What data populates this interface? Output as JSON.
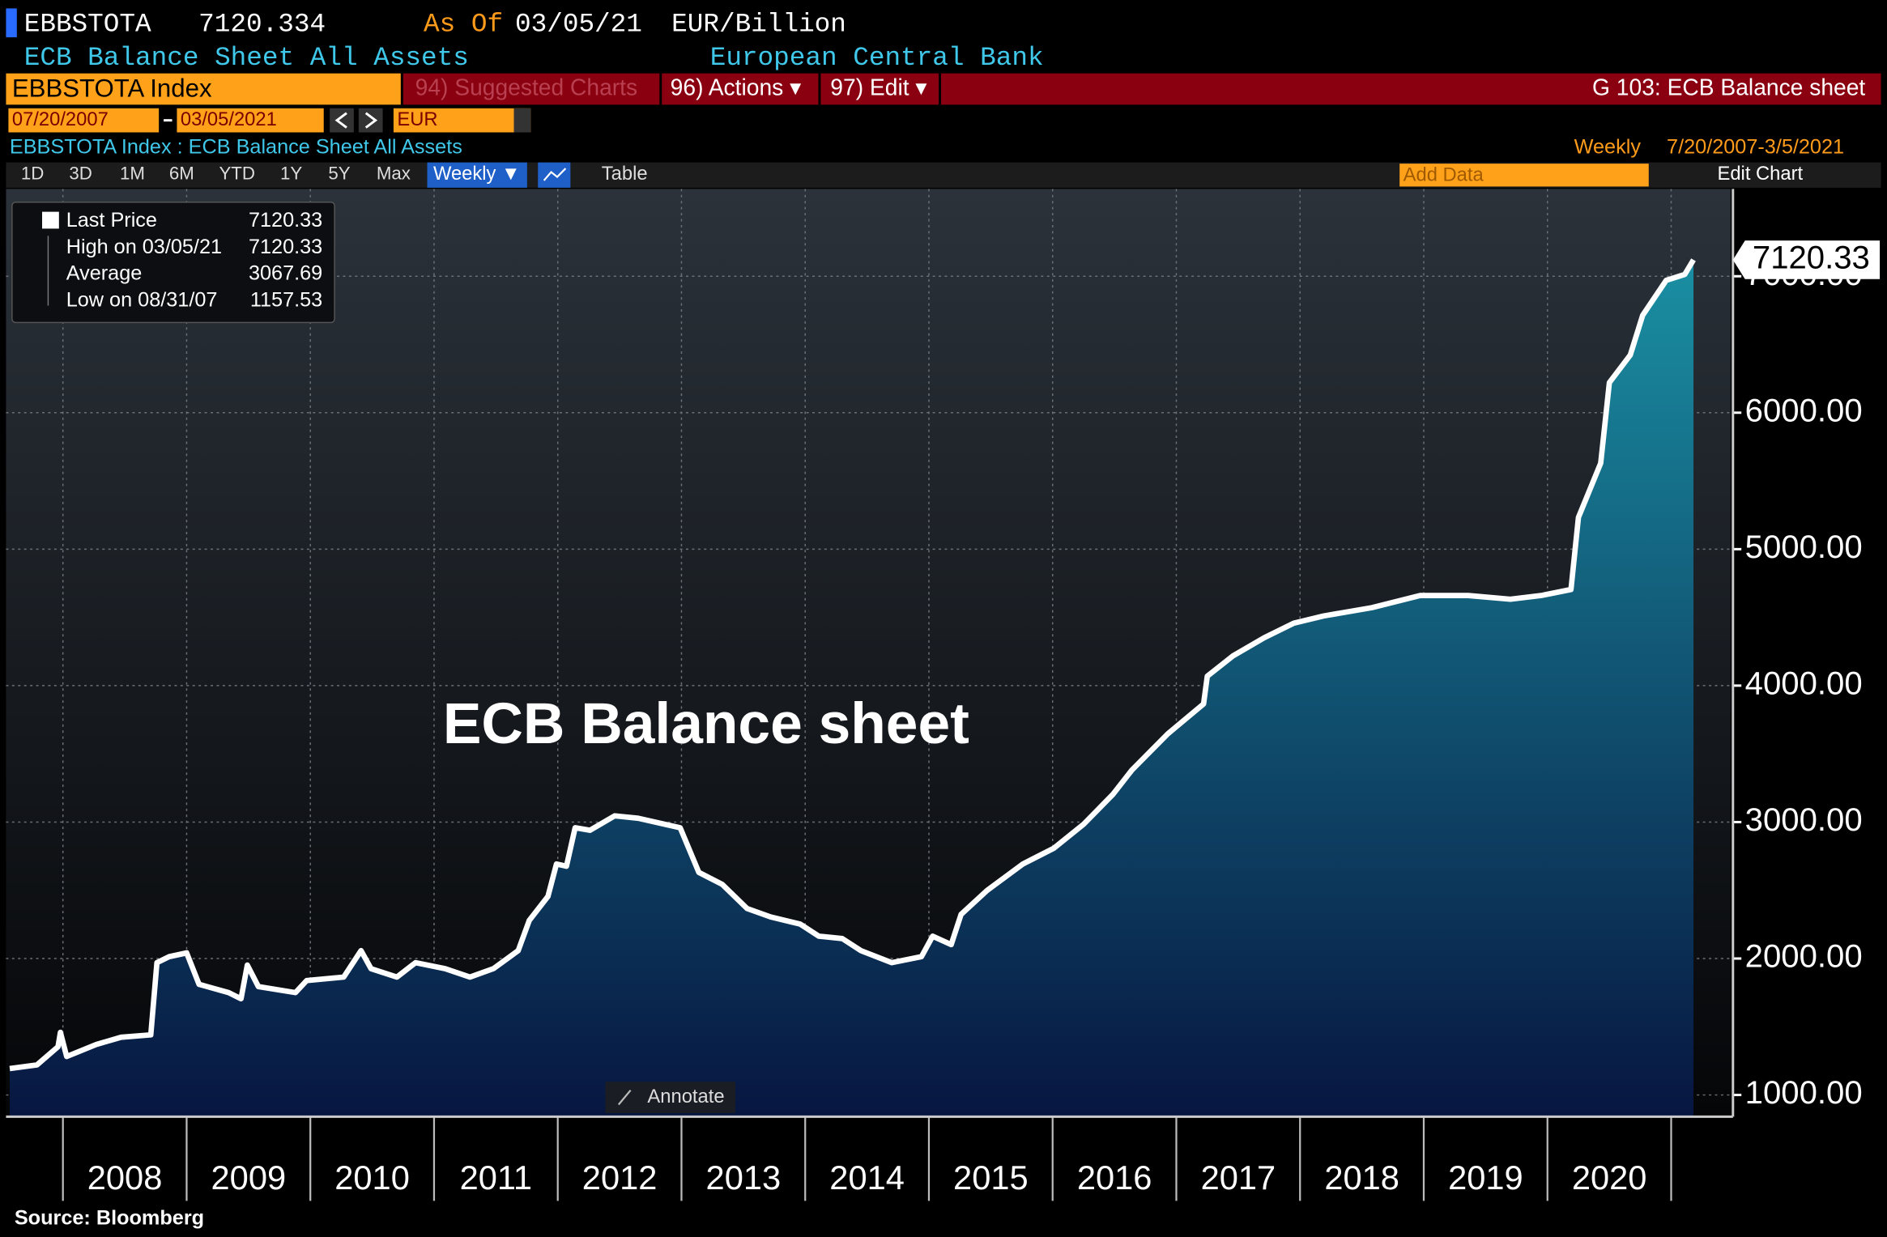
{
  "ui": {
    "ticker": "EBBSTOTA",
    "price": "7120.334",
    "as_of_label": "As Of",
    "as_of_date": "03/05/21",
    "unit": "EUR/Billion",
    "name": "ECB Balance Sheet All Assets",
    "source_org": "European Central Bank",
    "security": "EBBSTOTA Index",
    "menu": [
      "94) Suggested Charts",
      "96) Actions ▾",
      "97) Edit ▾"
    ],
    "page_title": "G 103: ECB Balance sheet",
    "start_date": "07/20/2007",
    "end_date": "03/05/2021",
    "currency": "EUR",
    "chart_header": "EBBSTOTA Index : ECB Balance Sheet All Assets",
    "frequency": "Weekly",
    "range": "7/20/2007-3/5/2021",
    "periods": [
      "1D",
      "3D",
      "1M",
      "6M",
      "YTD",
      "1Y",
      "5Y",
      "Max"
    ],
    "period_selected": "Weekly ▼",
    "table_tab": "Table",
    "add_data": "Add Data",
    "edit_chart": "Edit Chart",
    "legend_rows": [
      [
        "High on 03/05/21",
        "7120.33"
      ],
      [
        "Average",
        "3067.69"
      ],
      [
        "Low on 08/31/07",
        "1157.53"
      ]
    ],
    "legend_last": "7120.33",
    "annotate": "Annotate",
    "last_tag": "7120.33",
    "source": "Source: Bloomberg"
  },
  "chart_data": {
    "type": "area",
    "title": "ECB Balance sheet",
    "x": [
      2007.57,
      2007.79,
      2007.96,
      2007.98,
      2008.03,
      2008.27,
      2008.47,
      2008.71,
      2008.76,
      2008.86,
      2009.0,
      2009.1,
      2009.34,
      2009.44,
      2009.49,
      2009.58,
      2009.88,
      2009.97,
      2010.27,
      2010.41,
      2010.49,
      2010.7,
      2010.85,
      2011.09,
      2011.29,
      2011.48,
      2011.68,
      2011.77,
      2011.92,
      2011.99,
      2012.07,
      2012.14,
      2012.26,
      2012.46,
      2012.65,
      2012.99,
      2013.14,
      2013.33,
      2013.53,
      2013.72,
      2013.96,
      2014.11,
      2014.3,
      2014.45,
      2014.7,
      2014.94,
      2015.03,
      2015.18,
      2015.26,
      2015.47,
      2015.76,
      2016.01,
      2016.25,
      2016.49,
      2016.64,
      2016.93,
      2017.22,
      2017.25,
      2017.46,
      2017.71,
      2017.95,
      2018.19,
      2018.58,
      2018.97,
      2019.36,
      2019.7,
      2019.95,
      2020.04,
      2020.19,
      2020.25,
      2020.43,
      2020.5,
      2020.67,
      2020.77,
      2020.96,
      2021.11,
      2021.18
    ],
    "series": [
      {
        "name": "Last Price",
        "color": "#ffffff",
        "values": [
          1194,
          1220,
          1353,
          1459,
          1282,
          1370,
          1423,
          1441,
          1970,
          2014,
          2041,
          1811,
          1750,
          1705,
          1952,
          1794,
          1750,
          1838,
          1864,
          2058,
          1926,
          1864,
          1970,
          1926,
          1864,
          1926,
          2058,
          2279,
          2455,
          2693,
          2676,
          2958,
          2940,
          3046,
          3028,
          2958,
          2631,
          2543,
          2367,
          2305,
          2252,
          2164,
          2146,
          2058,
          1970,
          2014,
          2164,
          2102,
          2323,
          2499,
          2693,
          2808,
          2984,
          3205,
          3381,
          3646,
          3866,
          4069,
          4219,
          4351,
          4457,
          4510,
          4571,
          4660,
          4660,
          4633,
          4660,
          4677,
          4704,
          5233,
          5630,
          6220,
          6423,
          6714,
          6970,
          7014,
          7120.33
        ]
      }
    ],
    "xlim": [
      2007.54,
      2021.48
    ],
    "ylim": [
      841,
      7640
    ],
    "xticks": [
      {
        "value": 2008,
        "label": "2008"
      },
      {
        "value": 2009,
        "label": "2009"
      },
      {
        "value": 2010,
        "label": "2010"
      },
      {
        "value": 2011,
        "label": "2011"
      },
      {
        "value": 2012,
        "label": "2012"
      },
      {
        "value": 2013,
        "label": "2013"
      },
      {
        "value": 2014,
        "label": "2014"
      },
      {
        "value": 2015,
        "label": "2015"
      },
      {
        "value": 2016,
        "label": "2016"
      },
      {
        "value": 2017,
        "label": "2017"
      },
      {
        "value": 2018,
        "label": "2018"
      },
      {
        "value": 2019,
        "label": "2019"
      },
      {
        "value": 2020,
        "label": "2020"
      },
      {
        "value": 2021,
        "label": null
      }
    ],
    "yticks": [
      {
        "value": 1000,
        "label": "1000.00"
      },
      {
        "value": 2000,
        "label": "2000.00"
      },
      {
        "value": 3000,
        "label": "3000.00"
      },
      {
        "value": 4000,
        "label": "4000.00"
      },
      {
        "value": 5000,
        "label": "5000.00"
      },
      {
        "value": 6000,
        "label": "6000.00"
      },
      {
        "value": 7000,
        "label": "7000.00"
      }
    ],
    "grid": true,
    "fill_top": "#1a8fa3",
    "fill_bottom": "#071640"
  }
}
